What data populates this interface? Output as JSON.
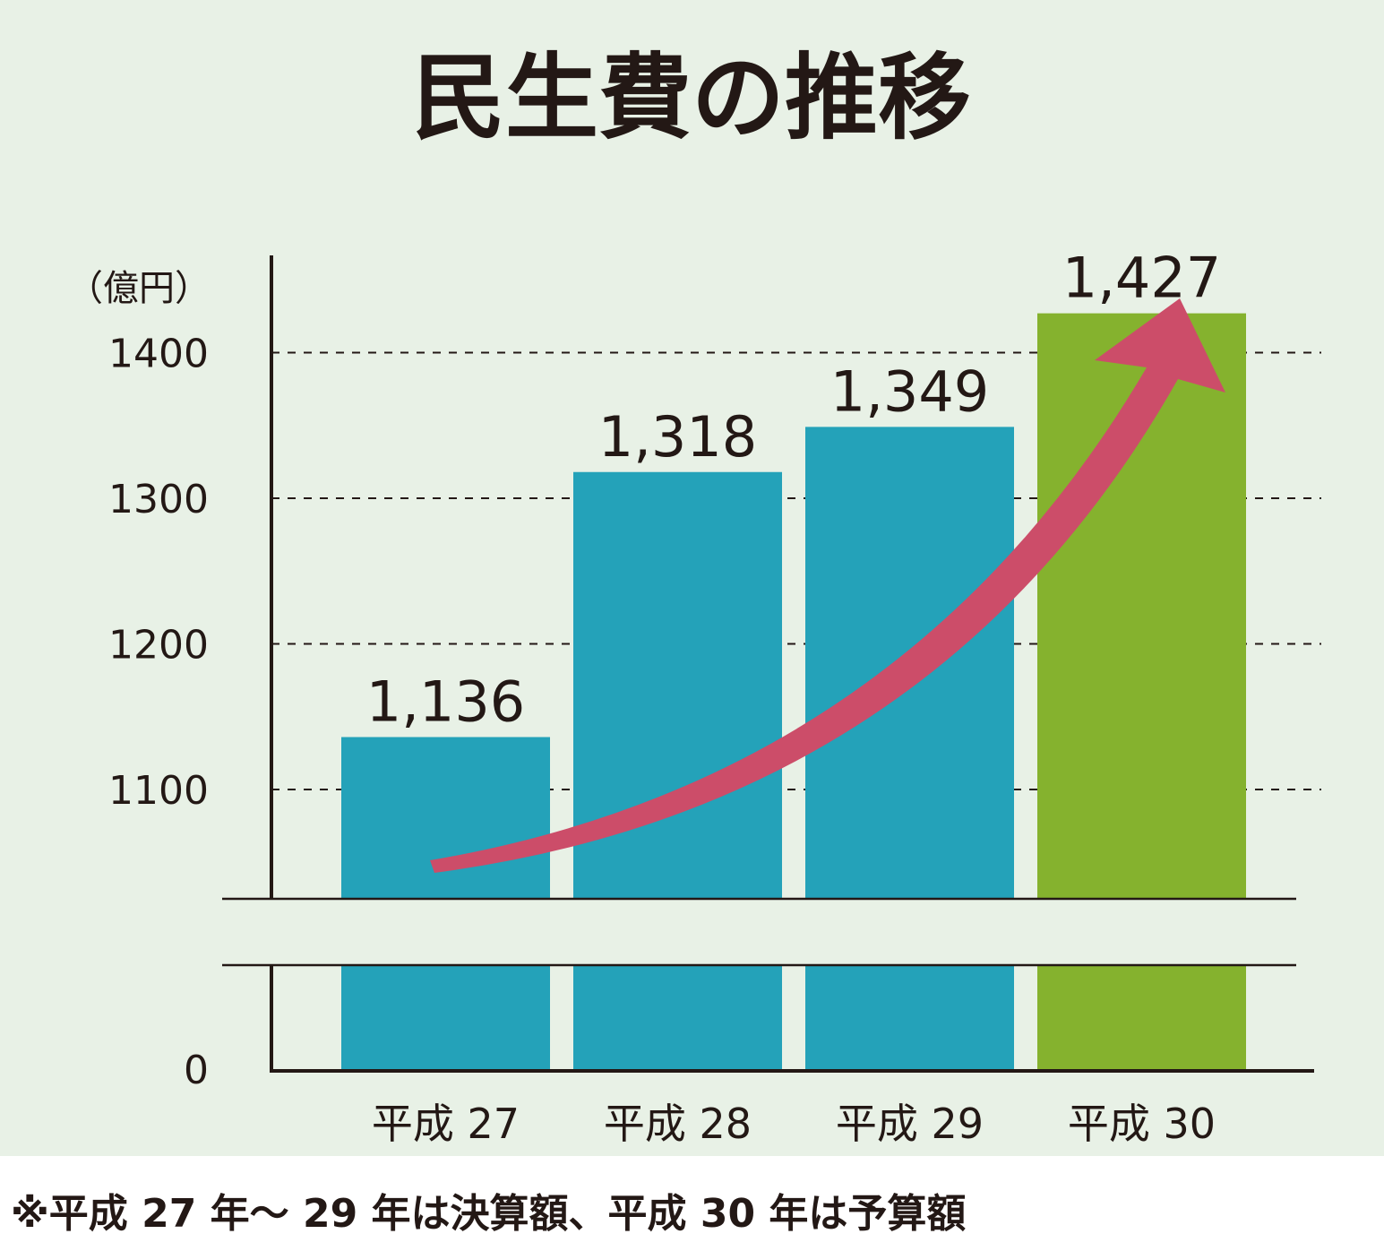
{
  "chart_data": {
    "type": "bar",
    "title": "民生費の推移",
    "unit_label": "（億円）",
    "categories": [
      "平成 27",
      "平成 28",
      "平成 29",
      "平成 30"
    ],
    "values": [
      1136,
      1318,
      1349,
      1427
    ],
    "value_labels": [
      "1,136",
      "1,318",
      "1,349",
      "1,427"
    ],
    "yticks": [
      {
        "value": 0,
        "label": "0"
      },
      {
        "value": 1100,
        "label": "1100"
      },
      {
        "value": 1200,
        "label": "1200"
      },
      {
        "value": 1300,
        "label": "1300"
      },
      {
        "value": 1400,
        "label": "1400"
      }
    ],
    "ylim_upper": [
      1025,
      1475
    ],
    "axis_break": true,
    "grid": "dashed horizontal at 1100, 1200, 1300, 1400",
    "bar_colors": [
      "#24a2b9",
      "#24a2b9",
      "#24a2b9",
      "#85b22e"
    ],
    "trend_arrow_color": "#cc4d69"
  },
  "footnote": "※平成 27 年～ 29 年は決算額、平成 30 年は予算額"
}
